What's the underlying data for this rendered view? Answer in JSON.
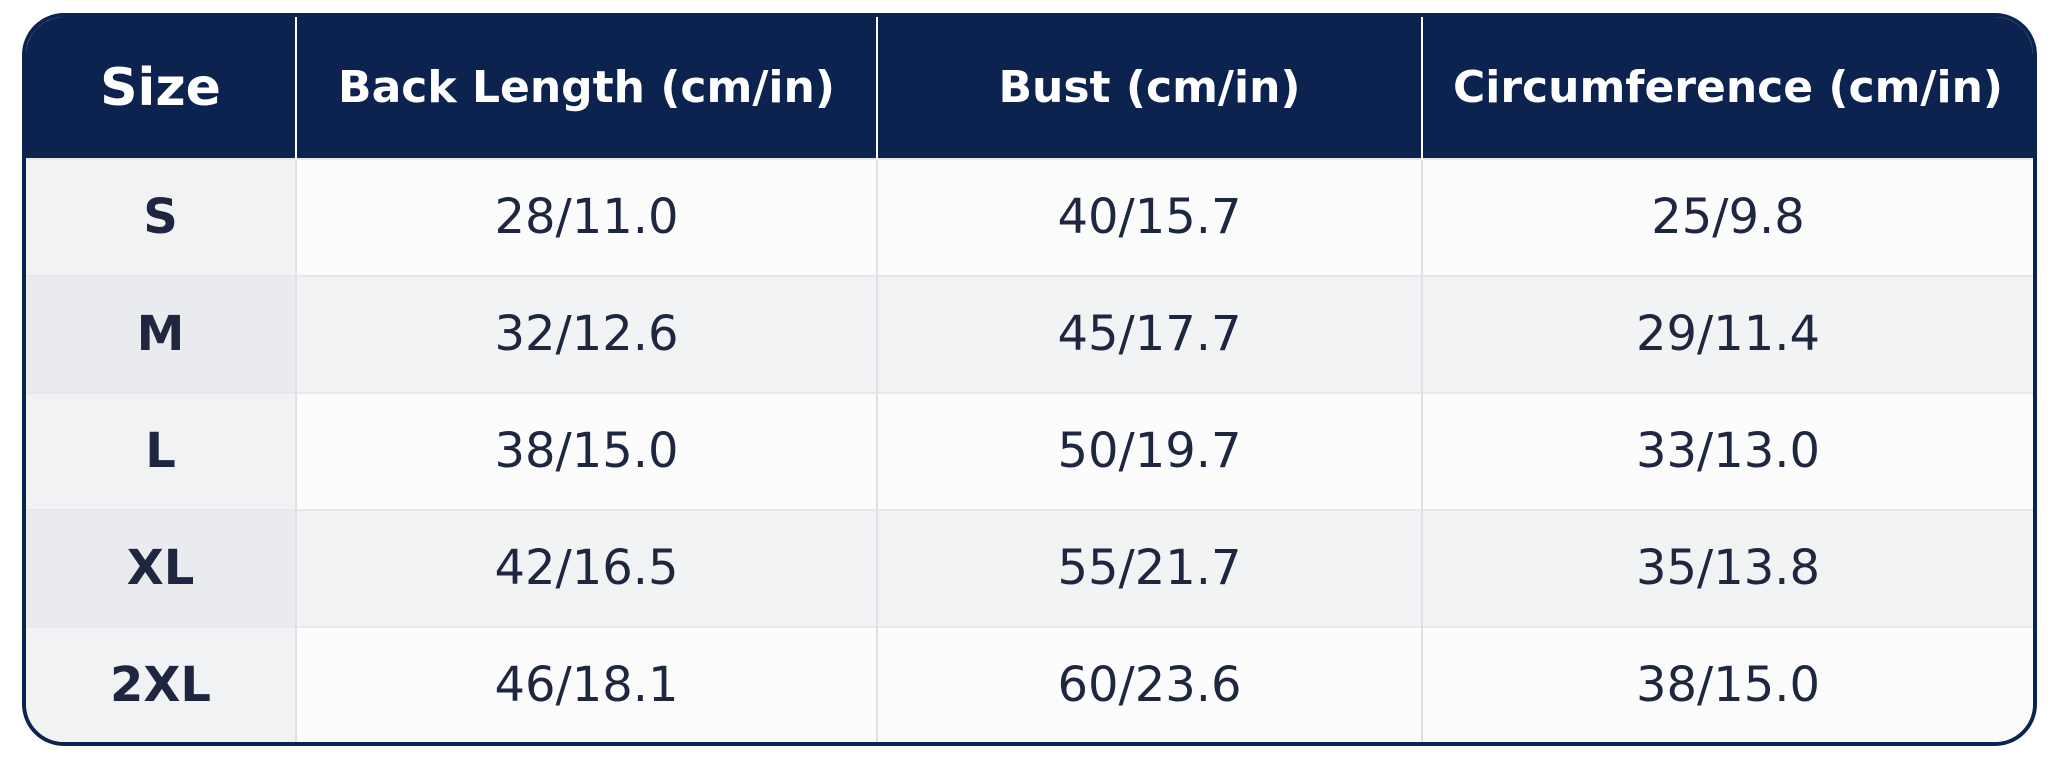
{
  "table": {
    "header": [
      "Size",
      "Back Length (cm/in)",
      "Bust (cm/in)",
      "Circumference (cm/in)"
    ],
    "rows": [
      [
        "S",
        "28/11.0",
        "40/15.7",
        "25/9.8"
      ],
      [
        "M",
        "32/12.6",
        "45/17.7",
        "29/11.4"
      ],
      [
        "L",
        "38/15.0",
        "50/19.7",
        "33/13.0"
      ],
      [
        "XL",
        "42/16.5",
        "55/21.7",
        "35/13.8"
      ],
      [
        "2XL",
        "46/18.1",
        "60/23.6",
        "38/15.0"
      ]
    ]
  }
}
